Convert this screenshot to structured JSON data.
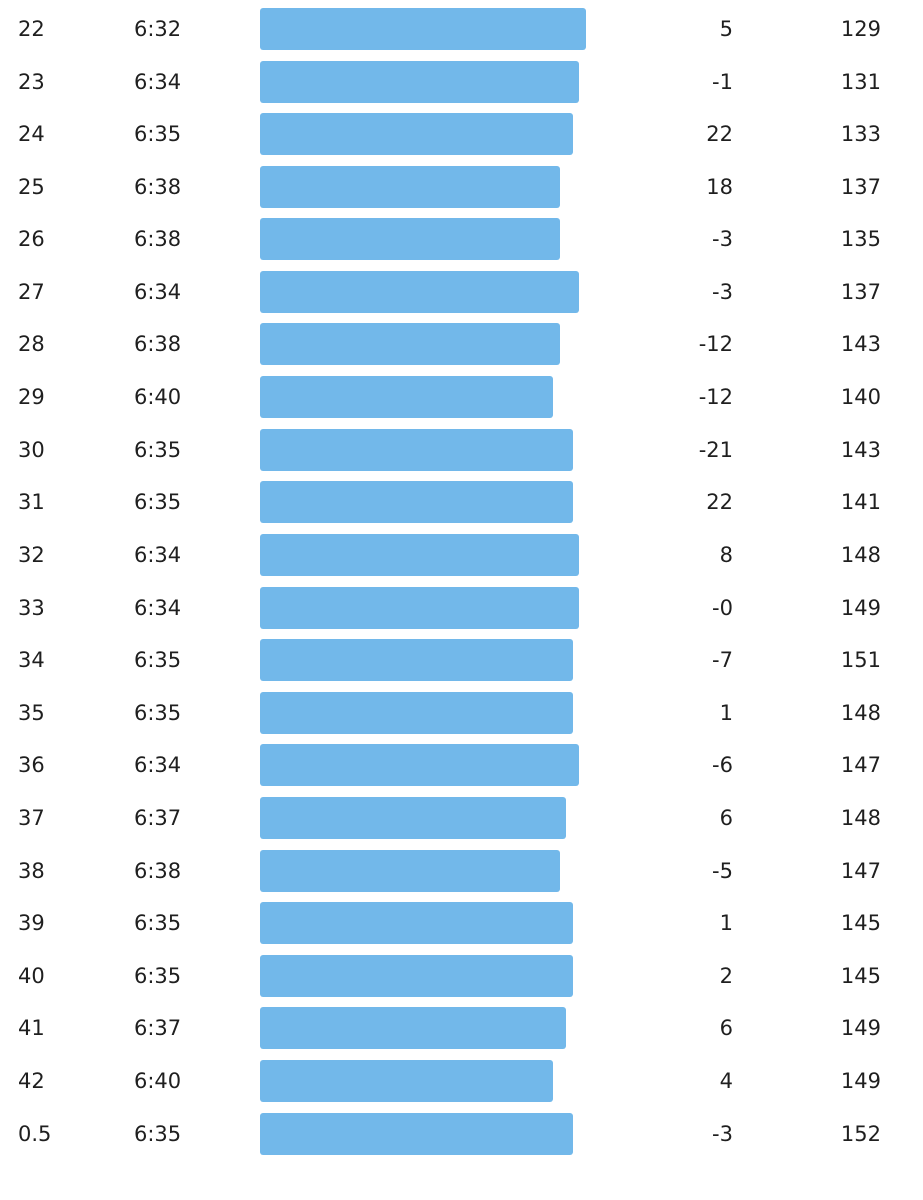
{
  "colors": {
    "pace_bar": "#72b8ea",
    "text": "#1f1f1f"
  },
  "splits": [
    {
      "km": "22",
      "pace": "6:32",
      "pace_fraction": 1.0,
      "elevation": "5",
      "heart_rate": "129"
    },
    {
      "km": "23",
      "pace": "6:34",
      "pace_fraction": 0.98,
      "elevation": "-1",
      "heart_rate": "131"
    },
    {
      "km": "24",
      "pace": "6:35",
      "pace_fraction": 0.96,
      "elevation": "22",
      "heart_rate": "133"
    },
    {
      "km": "25",
      "pace": "6:38",
      "pace_fraction": 0.92,
      "elevation": "18",
      "heart_rate": "137"
    },
    {
      "km": "26",
      "pace": "6:38",
      "pace_fraction": 0.92,
      "elevation": "-3",
      "heart_rate": "135"
    },
    {
      "km": "27",
      "pace": "6:34",
      "pace_fraction": 0.98,
      "elevation": "-3",
      "heart_rate": "137"
    },
    {
      "km": "28",
      "pace": "6:38",
      "pace_fraction": 0.92,
      "elevation": "-12",
      "heart_rate": "143"
    },
    {
      "km": "29",
      "pace": "6:40",
      "pace_fraction": 0.9,
      "elevation": "-12",
      "heart_rate": "140"
    },
    {
      "km": "30",
      "pace": "6:35",
      "pace_fraction": 0.96,
      "elevation": "-21",
      "heart_rate": "143"
    },
    {
      "km": "31",
      "pace": "6:35",
      "pace_fraction": 0.96,
      "elevation": "22",
      "heart_rate": "141"
    },
    {
      "km": "32",
      "pace": "6:34",
      "pace_fraction": 0.98,
      "elevation": "8",
      "heart_rate": "148"
    },
    {
      "km": "33",
      "pace": "6:34",
      "pace_fraction": 0.98,
      "elevation": "-0",
      "heart_rate": "149"
    },
    {
      "km": "34",
      "pace": "6:35",
      "pace_fraction": 0.96,
      "elevation": "-7",
      "heart_rate": "151"
    },
    {
      "km": "35",
      "pace": "6:35",
      "pace_fraction": 0.96,
      "elevation": "1",
      "heart_rate": "148"
    },
    {
      "km": "36",
      "pace": "6:34",
      "pace_fraction": 0.98,
      "elevation": "-6",
      "heart_rate": "147"
    },
    {
      "km": "37",
      "pace": "6:37",
      "pace_fraction": 0.94,
      "elevation": "6",
      "heart_rate": "148"
    },
    {
      "km": "38",
      "pace": "6:38",
      "pace_fraction": 0.92,
      "elevation": "-5",
      "heart_rate": "147"
    },
    {
      "km": "39",
      "pace": "6:35",
      "pace_fraction": 0.96,
      "elevation": "1",
      "heart_rate": "145"
    },
    {
      "km": "40",
      "pace": "6:35",
      "pace_fraction": 0.96,
      "elevation": "2",
      "heart_rate": "145"
    },
    {
      "km": "41",
      "pace": "6:37",
      "pace_fraction": 0.94,
      "elevation": "6",
      "heart_rate": "149"
    },
    {
      "km": "42",
      "pace": "6:40",
      "pace_fraction": 0.9,
      "elevation": "4",
      "heart_rate": "149"
    },
    {
      "km": "0.5",
      "pace": "6:35",
      "pace_fraction": 0.96,
      "elevation": "-3",
      "heart_rate": "152"
    }
  ]
}
